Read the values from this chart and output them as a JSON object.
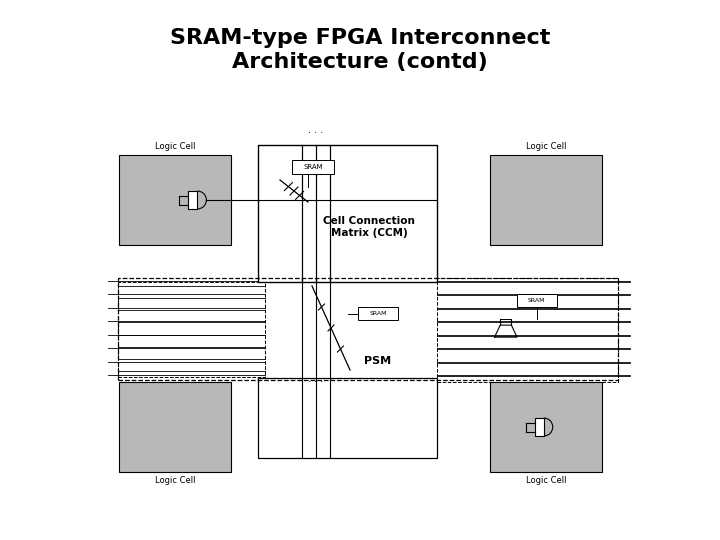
{
  "title_line1": "SRAM-type FPGA Interconnect",
  "title_line2": "Architecture (contd)",
  "title_fontsize": 16,
  "bg_color": "#ffffff",
  "gray_fill": "#b8b8b8",
  "white": "#ffffff",
  "black": "#000000",
  "ccm_label": "Cell Connection\nMatrix (CCM)",
  "psm_label": "PSM",
  "sram_label": "SRAM",
  "logic_cell_label": "Logic Cell",
  "dots": ". . ."
}
